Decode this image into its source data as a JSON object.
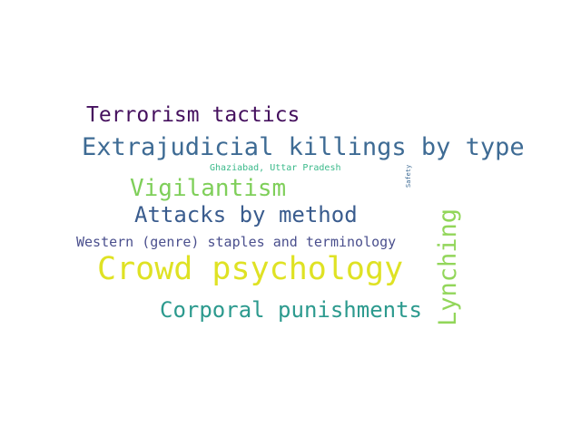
{
  "words": {
    "terrorism_tactics": {
      "text": "Terrorism tactics",
      "color": "#45105e"
    },
    "extrajudicial_killings": {
      "text": "Extrajudicial killings by type",
      "color": "#3e6b94"
    },
    "ghaziabad": {
      "text": "Ghaziabad, Uttar Pradesh",
      "color": "#3ab98a"
    },
    "safety": {
      "text": "Safety",
      "color": "#3e6b94"
    },
    "vigilantism": {
      "text": "Vigilantism",
      "color": "#7fcf5a"
    },
    "attacks_by_method": {
      "text": "Attacks by method",
      "color": "#3a5c8e"
    },
    "lynching": {
      "text": "Lynching",
      "color": "#92d65a"
    },
    "western_genre": {
      "text": "Western (genre) staples and terminology",
      "color": "#4a4f8d"
    },
    "crowd_psychology": {
      "text": "Crowd psychology",
      "color": "#dfe224"
    },
    "corporal_punishments": {
      "text": "Corporal punishments",
      "color": "#2c9a8e"
    }
  }
}
